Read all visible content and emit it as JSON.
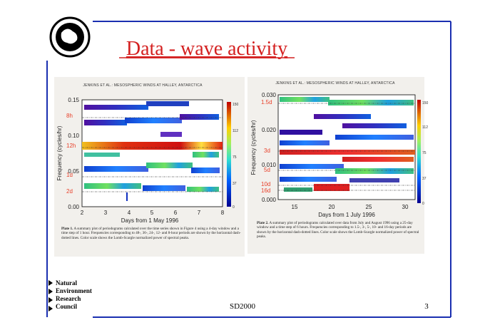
{
  "slide": {
    "title": "Data - wave activity",
    "footer": {
      "organisation": [
        "Natural",
        "Environment",
        "Research",
        "Council"
      ],
      "center": "SD2000",
      "page": "3"
    }
  },
  "figures": [
    {
      "header": "JENKINS ET AL.: MESOSPHERIC WINDS AT HALLEY, ANTARCTICA",
      "y_axis_label": "Frequency (cycles/hr)",
      "y_ticks": [
        "0.15",
        "0.10",
        "0.05",
        "0.00"
      ],
      "x_axis_label": "Days from 1 May 1996",
      "x_ticks": [
        "2",
        "3",
        "4",
        "5",
        "6",
        "7",
        "8"
      ],
      "period_labels": [
        "8h",
        "12h",
        "1d",
        "2d"
      ],
      "colorbar_ticks": [
        "150",
        "112",
        "75",
        "37",
        "0"
      ],
      "caption_label": "Plate 1.",
      "caption": "A summary plot of periodograms calculated over the time series shown in Figure 4 using a 4-day window and a time step of 1 hour. Frequencies corresponding to 48-, 36-, 24-, 12- and 8-hour periods are shown by the horizontal dash-dotted lines. Color scale shows the Lomb-Scargle normalized power of spectral peaks."
    },
    {
      "header": "JENKINS ET AL.: MESOSPHERIC WINDS AT HALLEY, ANTARCTICA",
      "y_axis_label": "Frequency (cycles/hr)",
      "y_ticks": [
        "0.030",
        "0.020",
        "0.010",
        "0.000"
      ],
      "x_axis_label": "Days from 1 July 1996",
      "x_ticks": [
        "15",
        "20",
        "25",
        "30"
      ],
      "period_labels": [
        "1.5d",
        "3d",
        "5d",
        "10d",
        "16d"
      ],
      "colorbar_ticks": [
        "150",
        "112",
        "75",
        "37",
        "0"
      ],
      "caption_label": "Plate 2.",
      "caption": "A summary plot of periodograms calculated over data from July and August 1996 using a 25-day window and a time step of 6 hours. Frequencies corresponding to 1.5-, 3-, 5-, 10- and 16-day periods are shown by the horizontal dash-dotted lines. Color scale shows the Lomb-Scargle normalized power of spectral peaks."
    }
  ]
}
